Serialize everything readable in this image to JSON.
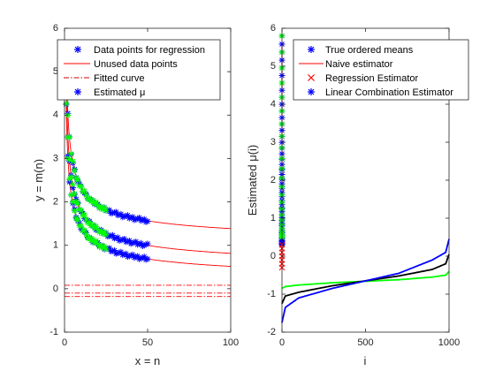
{
  "chart_data": [
    {
      "type": "line",
      "xlabel": "x = n",
      "ylabel": "y = m(n)",
      "xlim": [
        0,
        100
      ],
      "ylim": [
        -1,
        6
      ],
      "xticks": [
        "0",
        "50",
        "100"
      ],
      "yticks": [
        "-1",
        "0",
        "1",
        "2",
        "3",
        "4",
        "5",
        "6"
      ],
      "legend": {
        "placement": "top-right",
        "entries": [
          "Data points for regression",
          "Unused data points",
          "Fitted curve",
          "Estimated μ"
        ]
      },
      "series": [
        {
          "name": "Data points for regression",
          "marker": "*",
          "color": "#0000ff",
          "x_range": [
            1,
            50
          ],
          "curves": [
            {
              "a": 0.95,
              "b": 4.35
            },
            {
              "a": 0.37,
              "b": 4.45
            },
            {
              "a": 0.1,
              "b": 4.15
            }
          ]
        },
        {
          "name": "Unused data points",
          "marker": "*",
          "color": "#00ff00",
          "x_range": [
            1,
            25
          ],
          "curves": [
            {
              "a": 0.95,
              "b": 4.35
            },
            {
              "a": 0.37,
              "b": 4.45
            },
            {
              "a": 0.1,
              "b": 4.15
            }
          ]
        },
        {
          "name": "Fitted curve",
          "style": "solid",
          "color": "#ff0000",
          "x_range": [
            1,
            100
          ],
          "curves": [
            {
              "a": 0.95,
              "b": 4.35
            },
            {
              "a": 0.37,
              "b": 4.45
            },
            {
              "a": 0.1,
              "b": 4.15
            }
          ]
        },
        {
          "name": "Estimated μ",
          "style": "dash-dot",
          "color": "#ff0000",
          "y_values": [
            0.08,
            -0.1,
            -0.18
          ]
        }
      ]
    },
    {
      "type": "line",
      "xlabel": "i",
      "ylabel": "Estimated μ(i)",
      "xlim": [
        0,
        1000
      ],
      "ylim": [
        -2,
        6
      ],
      "xticks": [
        "0",
        "500",
        "1000"
      ],
      "yticks": [
        "-2",
        "-1",
        "0",
        "1",
        "2",
        "3",
        "4",
        "5",
        "6"
      ],
      "legend": {
        "placement": "top-right",
        "entries": [
          "True ordered means",
          "Naive estimator",
          "Regression Estimator",
          "Linear Combination Estimator"
        ]
      },
      "series": [
        {
          "name": "True ordered means",
          "marker": "*",
          "color": "#0000ff",
          "x": 0,
          "y_range": [
            0.3,
            5.8
          ]
        },
        {
          "name": "Naive estimator",
          "style": "solid",
          "color": "#ff0000",
          "x": 0,
          "y_range": [
            -0.2,
            5.6
          ]
        },
        {
          "name": "Regression Estimator",
          "marker": "x",
          "color": "#ff0000",
          "x": 0,
          "y_range": [
            -0.3,
            0.3
          ]
        },
        {
          "name": "Linear Combination Estimator",
          "marker": "*",
          "color": "#00ff00",
          "x": 0,
          "y_range": [
            0.5,
            5.8
          ]
        },
        {
          "name": "blue curve",
          "color": "#0000ff",
          "x": [
            0,
            20,
            100,
            300,
            500,
            700,
            900,
            980,
            1000
          ],
          "y": [
            -1.75,
            -1.35,
            -1.1,
            -0.85,
            -0.65,
            -0.45,
            -0.1,
            0.1,
            0.45
          ]
        },
        {
          "name": "black curve",
          "color": "#000000",
          "x": [
            0,
            20,
            100,
            300,
            500,
            700,
            900,
            980,
            1000
          ],
          "y": [
            -1.25,
            -1.05,
            -0.95,
            -0.78,
            -0.65,
            -0.52,
            -0.35,
            -0.2,
            0.05
          ]
        },
        {
          "name": "green curve",
          "color": "#00ff00",
          "x": [
            0,
            20,
            100,
            300,
            500,
            700,
            900,
            980,
            1000
          ],
          "y": [
            -0.85,
            -0.8,
            -0.76,
            -0.7,
            -0.66,
            -0.62,
            -0.55,
            -0.5,
            -0.4
          ]
        }
      ]
    }
  ]
}
